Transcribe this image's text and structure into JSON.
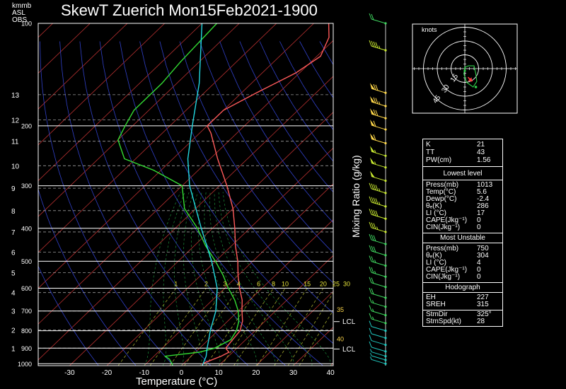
{
  "header": {
    "title": "SkewT Zuerich Mon15Feb2021-1900",
    "units_line1": "km",
    "units_line2": "mb",
    "units_line3": "ASL",
    "units_line4": "OBS"
  },
  "chart_data": {
    "type": "line",
    "title": "SkewT Zuerich Mon15Feb2021-1900",
    "xlabel": "Temperature (°C)",
    "ylabel_right": "Mixing Ratio (g/kg)",
    "x_ticks": [
      -30,
      -20,
      -10,
      0,
      10,
      20,
      30,
      40
    ],
    "pressure_ticks": [
      100,
      200,
      300,
      400,
      500,
      600,
      700,
      800,
      900,
      1000
    ],
    "height_ticks_km": [
      1,
      2,
      3,
      4,
      5,
      6,
      7,
      8,
      9,
      10,
      11,
      12,
      13
    ],
    "height_tick_pressures": [
      900,
      795,
      700,
      618,
      540,
      470,
      410,
      355,
      305,
      262,
      222,
      192,
      162
    ],
    "mixing_ratio_labels": [
      "1",
      "2",
      "3",
      "4",
      "6",
      "8",
      "10",
      "15",
      "20",
      "25",
      "30"
    ],
    "mixing_ratio_values": [
      1,
      2,
      3,
      4,
      6,
      8,
      10,
      15,
      20,
      25,
      30
    ],
    "right_labels": [
      {
        "text": "35",
        "p": 693,
        "color": "#ffd84a"
      },
      {
        "text": "LCL",
        "p": 752,
        "color": "#ffffff"
      },
      {
        "text": "40",
        "p": 845,
        "color": "#ffd84a"
      },
      {
        "text": "LCL",
        "p": 905,
        "color": "#ffffff"
      }
    ],
    "series": [
      {
        "name": "",
        "color": "#ff5a5a",
        "points": [
          [
            5.6,
            1013
          ],
          [
            5,
            1000
          ],
          [
            8,
            950
          ],
          [
            9,
            925
          ],
          [
            7,
            900
          ],
          [
            6.5,
            850
          ],
          [
            6,
            800
          ],
          [
            4,
            750
          ],
          [
            1,
            700
          ],
          [
            -2,
            650
          ],
          [
            -6,
            600
          ],
          [
            -10,
            550
          ],
          [
            -14,
            500
          ],
          [
            -19,
            450
          ],
          [
            -24,
            400
          ],
          [
            -30,
            350
          ],
          [
            -38,
            300
          ],
          [
            -48,
            250
          ],
          [
            -57,
            210
          ],
          [
            -60,
            200
          ],
          [
            -60,
            180
          ],
          [
            -56,
            160
          ],
          [
            -51,
            140
          ],
          [
            -49,
            125
          ],
          [
            -52,
            110
          ],
          [
            -56,
            100
          ]
        ]
      },
      {
        "name": "",
        "color": "#33dd33",
        "points": [
          [
            -2.4,
            1013
          ],
          [
            -3,
            1000
          ],
          [
            -5,
            970
          ],
          [
            -7,
            950
          ],
          [
            1,
            925
          ],
          [
            4,
            900
          ],
          [
            6,
            850
          ],
          [
            5,
            800
          ],
          [
            3,
            750
          ],
          [
            0,
            700
          ],
          [
            -4,
            650
          ],
          [
            -9,
            600
          ],
          [
            -14,
            550
          ],
          [
            -20,
            500
          ],
          [
            -27,
            450
          ],
          [
            -34,
            400
          ],
          [
            -43,
            350
          ],
          [
            -50,
            300
          ],
          [
            -62,
            270
          ],
          [
            -73,
            250
          ],
          [
            -80,
            220
          ],
          [
            -82,
            200
          ],
          [
            -84,
            180
          ],
          [
            -84,
            150
          ],
          [
            -85,
            130
          ],
          [
            -86,
            100
          ]
        ]
      },
      {
        "name": "",
        "color": "#22d8e0",
        "points": [
          [
            5.6,
            1013
          ],
          [
            4,
            950
          ],
          [
            2,
            900
          ],
          [
            0.5,
            860
          ],
          [
            -2,
            800
          ],
          [
            -6,
            700
          ],
          [
            -12,
            600
          ],
          [
            -21,
            500
          ],
          [
            -33,
            400
          ],
          [
            -48,
            300
          ],
          [
            -56,
            250
          ],
          [
            -64,
            200
          ],
          [
            -74,
            150
          ],
          [
            -90,
            100
          ]
        ]
      }
    ],
    "wind_barbs": [
      {
        "p": 100,
        "spd": 20
      },
      {
        "p": 120,
        "spd": 45
      },
      {
        "p": 160,
        "spd": 70
      },
      {
        "p": 175,
        "spd": 75
      },
      {
        "p": 190,
        "spd": 70
      },
      {
        "p": 205,
        "spd": 60
      },
      {
        "p": 225,
        "spd": 60
      },
      {
        "p": 245,
        "spd": 55
      },
      {
        "p": 265,
        "spd": 55
      },
      {
        "p": 290,
        "spd": 50
      },
      {
        "p": 315,
        "spd": 45
      },
      {
        "p": 345,
        "spd": 45
      },
      {
        "p": 375,
        "spd": 40
      },
      {
        "p": 410,
        "spd": 35
      },
      {
        "p": 445,
        "spd": 30
      },
      {
        "p": 480,
        "spd": 30
      },
      {
        "p": 515,
        "spd": 25
      },
      {
        "p": 555,
        "spd": 25
      },
      {
        "p": 595,
        "spd": 20
      },
      {
        "p": 640,
        "spd": 20
      },
      {
        "p": 680,
        "spd": 15
      },
      {
        "p": 720,
        "spd": 15
      },
      {
        "p": 760,
        "spd": 15
      },
      {
        "p": 800,
        "spd": 10
      },
      {
        "p": 840,
        "spd": 10
      },
      {
        "p": 880,
        "spd": 10
      },
      {
        "p": 920,
        "spd": 10
      },
      {
        "p": 950,
        "spd": 5
      },
      {
        "p": 975,
        "spd": 5
      },
      {
        "p": 1000,
        "spd": 5
      }
    ],
    "hodograph": {
      "unit_label": "knots",
      "ring_labels": [
        "15",
        "30",
        "45"
      ],
      "ring_values": [
        15,
        30,
        45
      ],
      "trace": [
        [
          0,
          0
        ],
        [
          1,
          2
        ],
        [
          4,
          3
        ],
        [
          10,
          3
        ],
        [
          12,
          -6
        ],
        [
          13,
          -14
        ],
        [
          9,
          -20
        ],
        [
          2,
          -15
        ],
        [
          -1,
          -6
        ],
        [
          0,
          2
        ]
      ],
      "storm_motion": [
        8,
        -14
      ]
    }
  },
  "indices": {
    "block1": [
      {
        "label": "K",
        "value": "21"
      },
      {
        "label": "TT",
        "value": "43"
      },
      {
        "label": "PW(cm)",
        "value": "1.56"
      }
    ],
    "lowest_level_title": "Lowest level",
    "block2": [
      {
        "label": "Press(mb)",
        "value": "1013"
      },
      {
        "label": "Temp(°C)",
        "value": "5.6"
      },
      {
        "label": "Dewp(°C)",
        "value": "-2.4"
      },
      {
        "label": "θₑ(K)",
        "value": "286"
      },
      {
        "label": "LI (°C)",
        "value": "17"
      },
      {
        "label": "CAPE(Jkg⁻¹)",
        "value": "0"
      },
      {
        "label": "CIN(Jkg⁻¹)",
        "value": "0"
      }
    ],
    "most_unstable_title": "Most Unstable",
    "block3": [
      {
        "label": "Press(mb)",
        "value": "750"
      },
      {
        "label": "θₑ(K)",
        "value": "304"
      },
      {
        "label": "LI (°C)",
        "value": "4"
      },
      {
        "label": "CAPE(Jkg⁻¹)",
        "value": "0"
      },
      {
        "label": "CIN(Jkg⁻¹)",
        "value": "0"
      }
    ],
    "hodograph_title": "Hodograph",
    "block4": [
      {
        "label": "EH",
        "value": "227"
      },
      {
        "label": "SREH",
        "value": "315"
      }
    ],
    "block5": [
      {
        "label": "StmDir",
        "value": "325°"
      },
      {
        "label": "StmSpd(kt)",
        "value": "28"
      }
    ]
  }
}
